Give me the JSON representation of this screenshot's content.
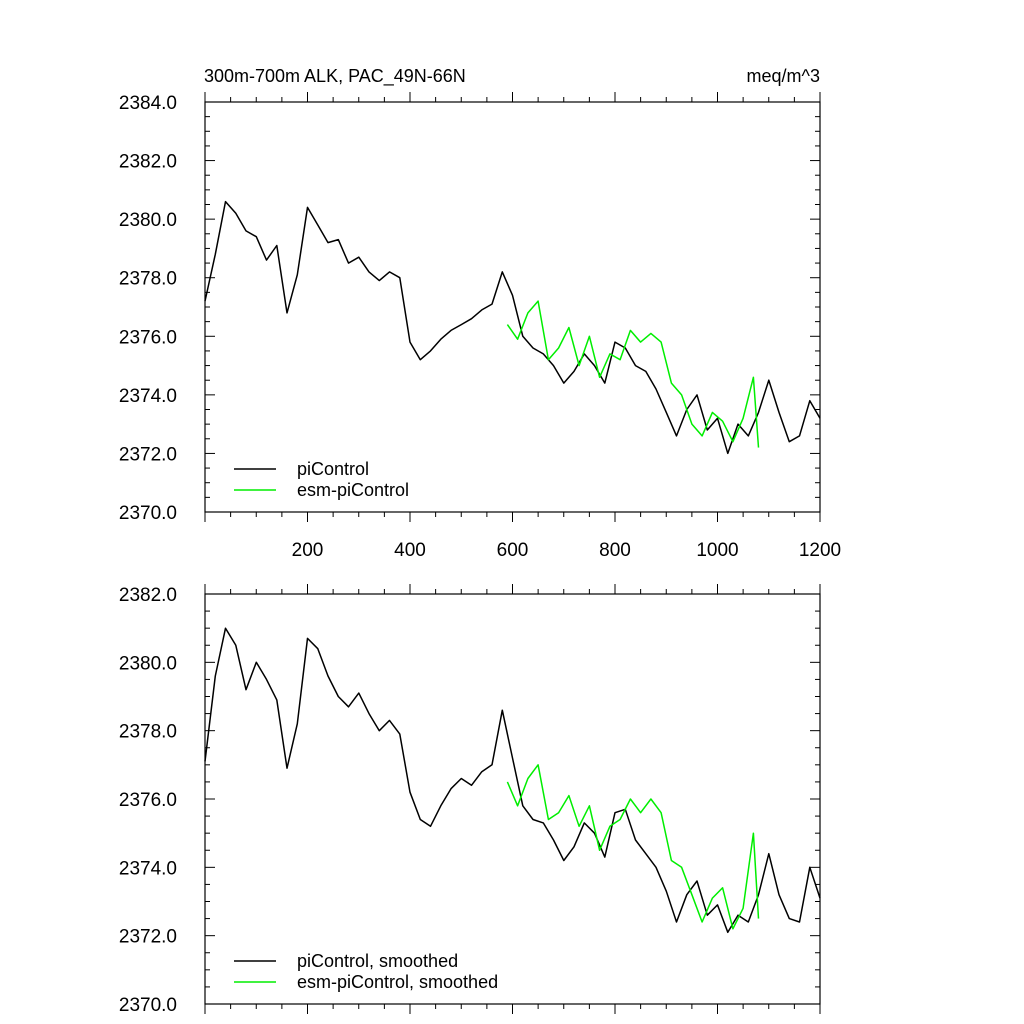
{
  "chart_data": [
    {
      "type": "line",
      "title_left": "300m-700m ALK, PAC_49N-66N",
      "title_right": "meq/m^3",
      "xlim": [
        0,
        1200
      ],
      "ylim": [
        2370,
        2384
      ],
      "x_ticks": [
        200,
        400,
        600,
        800,
        1000,
        1200
      ],
      "y_ticks": [
        "2370.0",
        "2372.0",
        "2374.0",
        "2376.0",
        "2378.0",
        "2380.0",
        "2382.0",
        "2384.0"
      ],
      "series": [
        {
          "name": "piControl",
          "color": "#000000",
          "x": [
            0,
            20,
            40,
            60,
            80,
            100,
            120,
            140,
            160,
            180,
            200,
            220,
            240,
            260,
            280,
            300,
            320,
            340,
            360,
            380,
            400,
            420,
            440,
            460,
            480,
            500,
            520,
            540,
            560,
            580,
            600,
            620,
            640,
            660,
            680,
            700,
            720,
            740,
            760,
            780,
            800,
            820,
            840,
            860,
            880,
            900,
            920,
            940,
            960,
            980,
            1000,
            1020,
            1040,
            1060,
            1080,
            1100,
            1120,
            1140,
            1160,
            1180,
            1200
          ],
          "values": [
            2377.2,
            2378.8,
            2380.6,
            2380.2,
            2379.6,
            2379.4,
            2378.6,
            2379.1,
            2376.8,
            2378.1,
            2380.4,
            2379.8,
            2379.2,
            2379.3,
            2378.5,
            2378.7,
            2378.2,
            2377.9,
            2378.2,
            2378.0,
            2375.8,
            2375.2,
            2375.5,
            2375.9,
            2376.2,
            2376.4,
            2376.6,
            2376.9,
            2377.1,
            2378.2,
            2377.4,
            2376.0,
            2375.6,
            2375.4,
            2375.0,
            2374.4,
            2374.8,
            2375.4,
            2375.0,
            2374.4,
            2375.8,
            2375.6,
            2375.0,
            2374.8,
            2374.2,
            2373.4,
            2372.6,
            2373.5,
            2374.0,
            2372.8,
            2373.2,
            2372.0,
            2373.0,
            2372.6,
            2373.4,
            2374.5,
            2373.4,
            2372.4,
            2372.6,
            2373.8,
            2373.2
          ]
        },
        {
          "name": "esm-piControl",
          "color": "#00ee00",
          "x": [
            590,
            610,
            630,
            650,
            670,
            690,
            710,
            730,
            750,
            770,
            790,
            810,
            830,
            850,
            870,
            890,
            910,
            930,
            950,
            970,
            990,
            1010,
            1030,
            1050,
            1070,
            1080
          ],
          "values": [
            2376.4,
            2375.9,
            2376.8,
            2377.2,
            2375.2,
            2375.6,
            2376.3,
            2375.0,
            2376.0,
            2374.6,
            2375.4,
            2375.2,
            2376.2,
            2375.8,
            2376.1,
            2375.8,
            2374.4,
            2374.0,
            2373.0,
            2372.6,
            2373.4,
            2373.1,
            2372.4,
            2373.2,
            2374.6,
            2372.2
          ]
        }
      ]
    },
    {
      "type": "line",
      "xlim": [
        0,
        1200
      ],
      "ylim": [
        2370,
        2382
      ],
      "y_ticks": [
        "2370.0",
        "2372.0",
        "2374.0",
        "2376.0",
        "2378.0",
        "2380.0",
        "2382.0"
      ],
      "series": [
        {
          "name": "piControl, smoothed",
          "color": "#000000",
          "x": [
            0,
            20,
            40,
            60,
            80,
            100,
            120,
            140,
            160,
            180,
            200,
            220,
            240,
            260,
            280,
            300,
            320,
            340,
            360,
            380,
            400,
            420,
            440,
            460,
            480,
            500,
            520,
            540,
            560,
            580,
            600,
            620,
            640,
            660,
            680,
            700,
            720,
            740,
            760,
            780,
            800,
            820,
            840,
            860,
            880,
            900,
            920,
            940,
            960,
            980,
            1000,
            1020,
            1040,
            1060,
            1080,
            1100,
            1120,
            1140,
            1160,
            1180,
            1200
          ],
          "values": [
            2377.1,
            2379.6,
            2381.0,
            2380.5,
            2379.2,
            2380.0,
            2379.5,
            2378.9,
            2376.9,
            2378.2,
            2380.7,
            2380.4,
            2379.6,
            2379.0,
            2378.7,
            2379.1,
            2378.5,
            2378.0,
            2378.3,
            2377.9,
            2376.2,
            2375.4,
            2375.2,
            2375.8,
            2376.3,
            2376.6,
            2376.4,
            2376.8,
            2377.0,
            2378.6,
            2377.2,
            2375.8,
            2375.4,
            2375.3,
            2374.8,
            2374.2,
            2374.6,
            2375.3,
            2375.0,
            2374.3,
            2375.6,
            2375.7,
            2374.8,
            2374.4,
            2374.0,
            2373.3,
            2372.4,
            2373.2,
            2373.6,
            2372.6,
            2372.9,
            2372.1,
            2372.6,
            2372.4,
            2373.2,
            2374.4,
            2373.2,
            2372.5,
            2372.4,
            2374.0,
            2373.1
          ]
        },
        {
          "name": "esm-piControl, smoothed",
          "color": "#00ee00",
          "x": [
            590,
            610,
            630,
            650,
            670,
            690,
            710,
            730,
            750,
            770,
            790,
            810,
            830,
            850,
            870,
            890,
            910,
            930,
            950,
            970,
            990,
            1010,
            1030,
            1050,
            1070,
            1080
          ],
          "values": [
            2376.5,
            2375.8,
            2376.6,
            2377.0,
            2375.4,
            2375.6,
            2376.1,
            2375.2,
            2375.8,
            2374.5,
            2375.2,
            2375.4,
            2376.0,
            2375.6,
            2376.0,
            2375.6,
            2374.2,
            2374.0,
            2373.2,
            2372.4,
            2373.1,
            2373.4,
            2372.2,
            2372.8,
            2375.0,
            2372.5
          ]
        }
      ]
    }
  ]
}
